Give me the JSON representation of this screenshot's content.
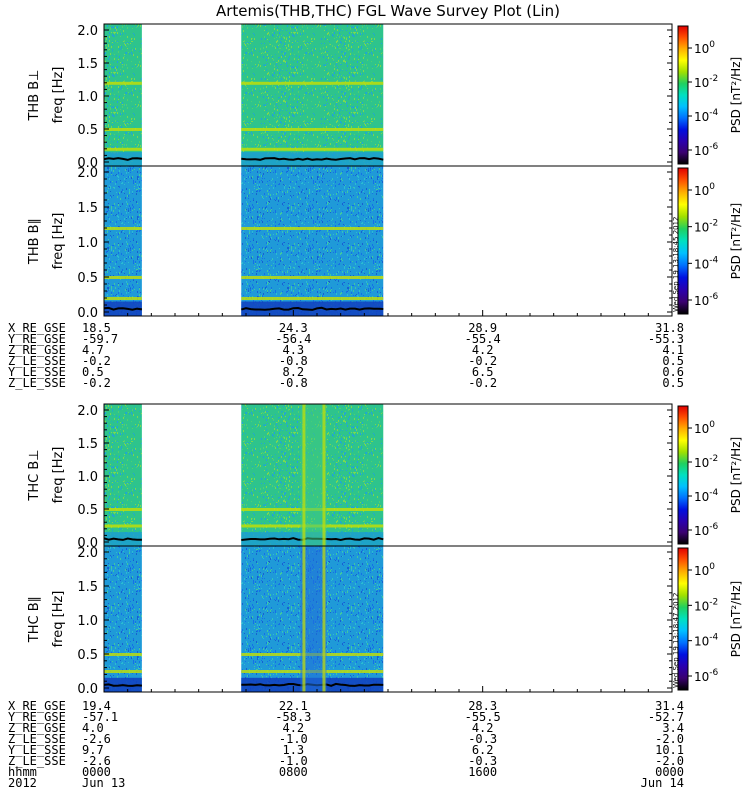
{
  "chart_data": {
    "type": "heatmap",
    "title": "Artemis(THB,THC) FGL Wave Survey Plot (Lin)",
    "panels": [
      {
        "label": "THB B⊥",
        "probe": "THB",
        "component": "perp",
        "ylabel": "freq [Hz]",
        "ylim": [
          0,
          2.0
        ],
        "yticks": [
          "0.0",
          "0.5",
          "1.0",
          "1.5",
          "2.0"
        ],
        "zlabel": "PSD [nT²/Hz]",
        "ztick_exponents": [
          "0",
          "-2",
          "-4",
          "-6"
        ],
        "zbase": "10",
        "data_hours": [
          [
            0,
            1.6
          ],
          [
            5.8,
            11.8
          ]
        ],
        "lines_hz": [
          0.2,
          0.5,
          1.2
        ]
      },
      {
        "label": "THB B∥",
        "probe": "THB",
        "component": "par",
        "ylabel": "freq [Hz]",
        "ylim": [
          0,
          2.0
        ],
        "yticks": [
          "0.0",
          "0.5",
          "1.0",
          "1.5",
          "2.0"
        ],
        "zlabel": "PSD [nT²/Hz]",
        "ztick_exponents": [
          "0",
          "-2",
          "-4",
          "-6"
        ],
        "zbase": "10",
        "data_hours": [
          [
            0,
            1.6
          ],
          [
            5.8,
            11.8
          ]
        ],
        "lines_hz": [
          0.2,
          0.5,
          1.2
        ],
        "stamp": "Wed Sep 19 13:18:45 2012"
      },
      {
        "label": "THC B⊥",
        "probe": "THC",
        "component": "perp",
        "ylabel": "freq [Hz]",
        "ylim": [
          0,
          2.0
        ],
        "yticks": [
          "0.0",
          "0.5",
          "1.0",
          "1.5",
          "2.0"
        ],
        "zlabel": "PSD [nT²/Hz]",
        "ztick_exponents": [
          "0",
          "-2",
          "-4",
          "-6"
        ],
        "zbase": "10",
        "data_hours": [
          [
            0,
            1.6
          ],
          [
            5.8,
            11.8
          ]
        ],
        "lines_hz": [
          0.5,
          0.25
        ],
        "gap_hours": [
          8.3,
          9.4
        ]
      },
      {
        "label": "THC B∥",
        "probe": "THC",
        "component": "par",
        "ylabel": "freq [Hz]",
        "ylim": [
          0,
          2.0
        ],
        "yticks": [
          "0.0",
          "0.5",
          "1.0",
          "1.5",
          "2.0"
        ],
        "zlabel": "PSD [nT²/Hz]",
        "ztick_exponents": [
          "0",
          "-2",
          "-4",
          "-6"
        ],
        "zbase": "10",
        "data_hours": [
          [
            0,
            1.6
          ],
          [
            5.8,
            11.8
          ]
        ],
        "lines_hz": [
          0.5,
          0.25
        ],
        "gap_hours": [
          8.3,
          9.4
        ],
        "stamp": "Wed Sep 19 13:18:47 2012"
      }
    ],
    "x_hours_range": [
      0,
      24
    ],
    "ephemeris": [
      {
        "probe": "THB",
        "rows": [
          {
            "label": "X_RE_GSE",
            "values": [
              "18.5",
              "24.3",
              "28.9",
              "31.8"
            ]
          },
          {
            "label": "Y_RE_GSE",
            "values": [
              "-59.7",
              "-56.4",
              "-55.4",
              "-55.3"
            ]
          },
          {
            "label": "Z_RE_GSE",
            "values": [
              "4.7",
              "4.3",
              "4.2",
              "4.1"
            ]
          },
          {
            "label": "Z_LE_SSE",
            "values": [
              "-0.2",
              "-0.8",
              "-0.2",
              "0.5"
            ]
          },
          {
            "label": "Y_LE_SSE",
            "values": [
              "0.5",
              "8.2",
              "6.5",
              "0.6"
            ]
          },
          {
            "label": "Z_LE_SSE",
            "values": [
              "-0.2",
              "-0.8",
              "-0.2",
              "0.5"
            ]
          }
        ]
      },
      {
        "probe": "THC",
        "rows": [
          {
            "label": "X_RE_GSE",
            "values": [
              "19.4",
              "22.1",
              "28.3",
              "31.4"
            ]
          },
          {
            "label": "Y_RE_GSE",
            "values": [
              "-57.1",
              "-58.3",
              "-55.5",
              "-52.7"
            ]
          },
          {
            "label": "Z_RE_GSE",
            "values": [
              "4.0",
              "4.2",
              "4.2",
              "3.4"
            ]
          },
          {
            "label": "Z_LE_SSE",
            "values": [
              "-2.6",
              "-1.0",
              "-0.3",
              "-2.0"
            ]
          },
          {
            "label": "Y_LE_SSE",
            "values": [
              "9.7",
              "1.3",
              "6.2",
              "10.1"
            ]
          },
          {
            "label": "Z_LE_SSE",
            "values": [
              "-2.6",
              "-1.0",
              "-0.3",
              "-2.0"
            ]
          }
        ]
      }
    ],
    "time_axis": {
      "rows": [
        {
          "label": "hhmm",
          "values": [
            "0000",
            "0800",
            "1600",
            "0000"
          ]
        },
        {
          "label": "2012",
          "values": [
            "Jun 13",
            "",
            "",
            "Jun 14"
          ]
        }
      ]
    },
    "colorscale": [
      "#000000",
      "#3a0070",
      "#2a00b0",
      "#0010e0",
      "#0070ff",
      "#00c0ff",
      "#00e0c0",
      "#20d060",
      "#a0e000",
      "#ffff00",
      "#ffb000",
      "#ff5000",
      "#e00000"
    ]
  }
}
